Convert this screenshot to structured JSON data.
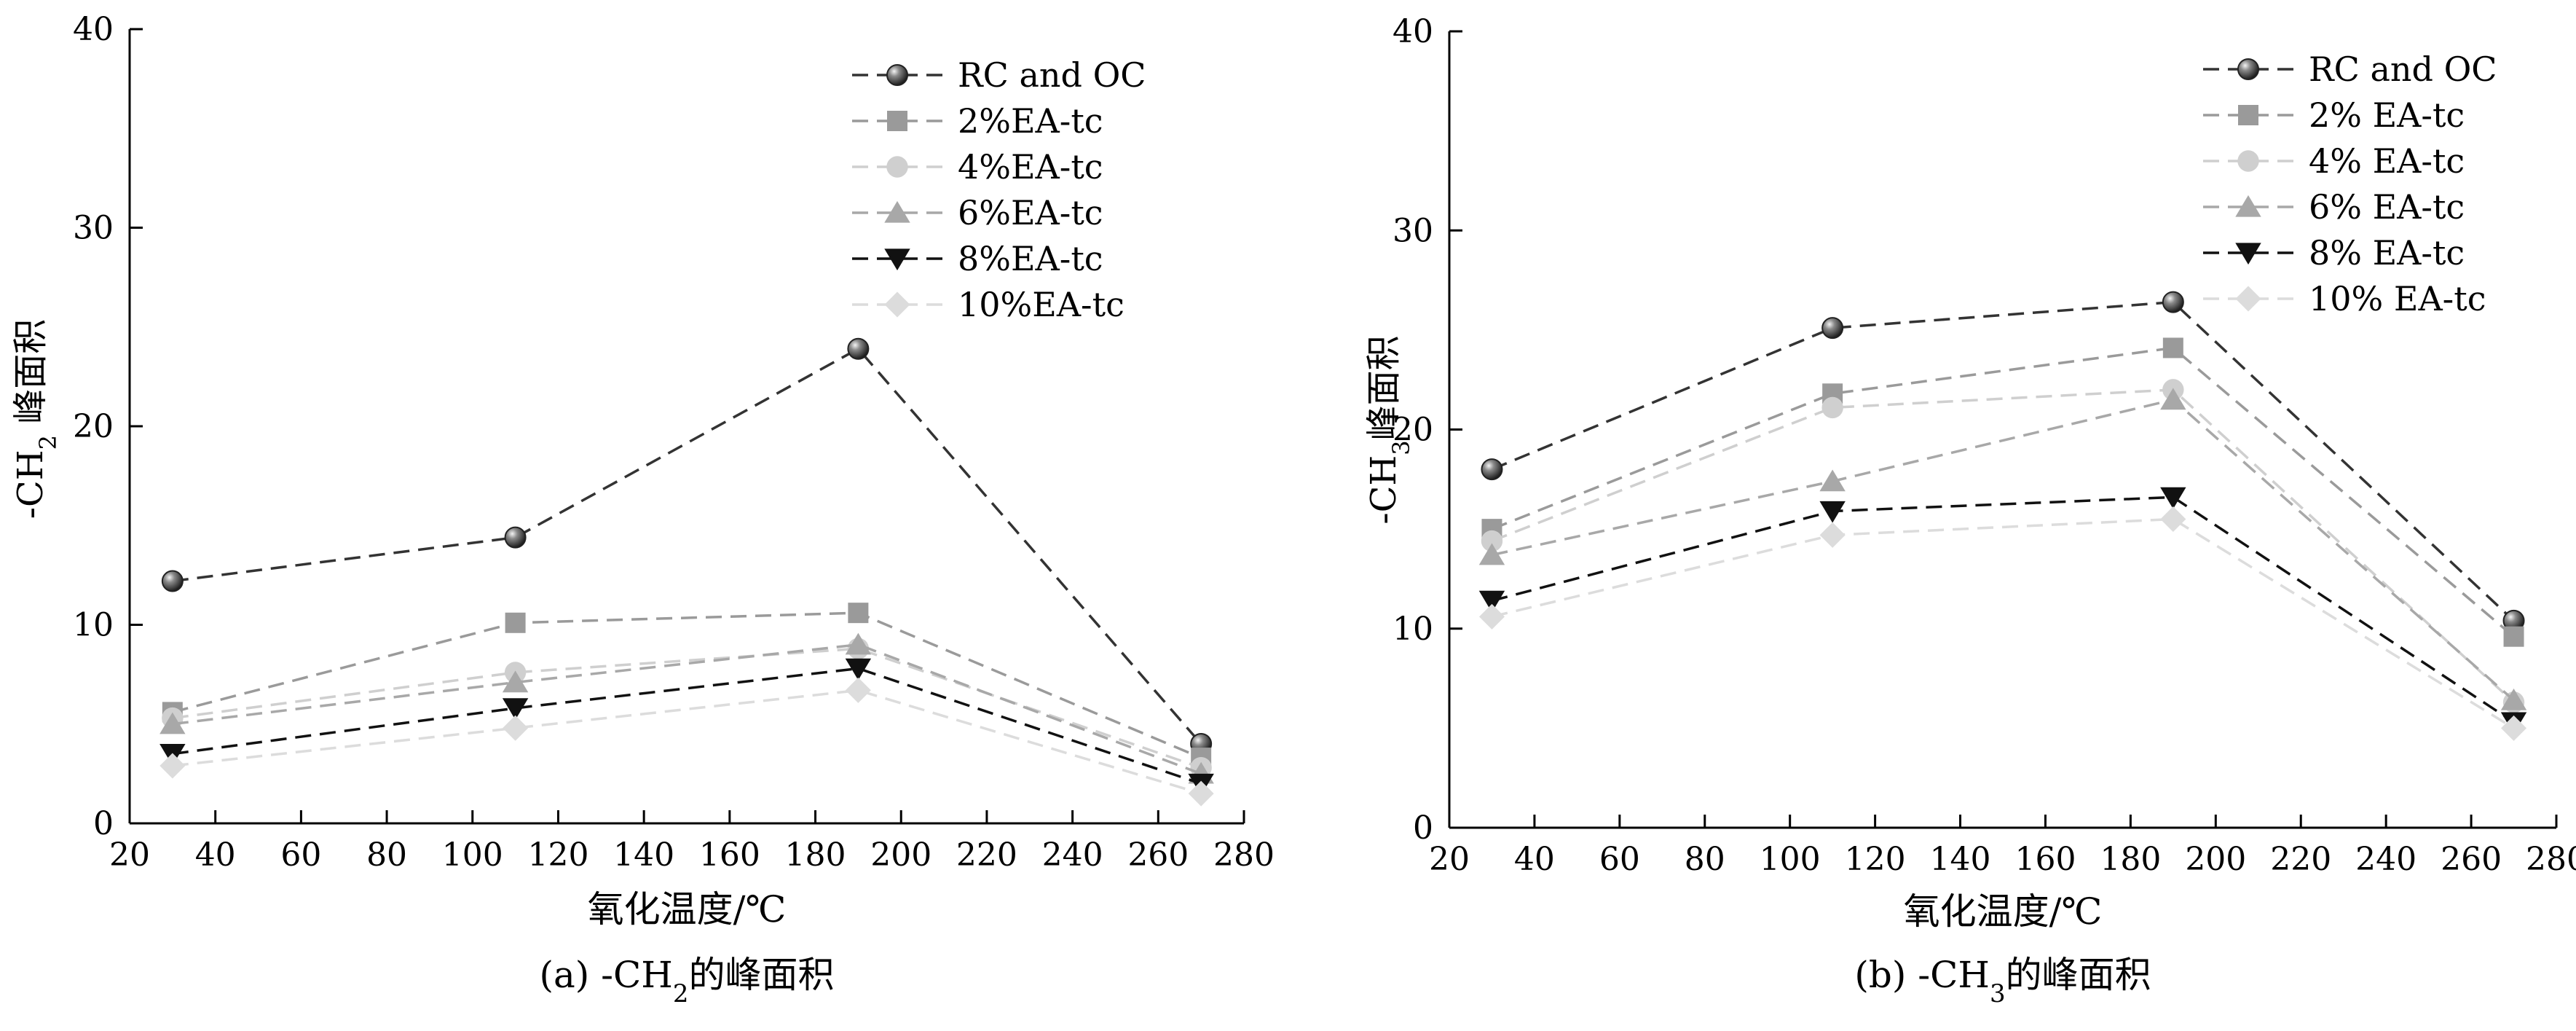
{
  "chart_data": [
    {
      "type": "line",
      "panel": "a",
      "x": [
        30,
        110,
        190,
        270
      ],
      "xlabel": "氧化温度/℃",
      "ylabel_prefix": "-CH",
      "ylabel_sub": "2",
      "ylabel_suffix": " 峰面积",
      "caption_prefix": "(a) -CH",
      "caption_sub": "2",
      "caption_suffix": "的峰面积",
      "xlim": [
        20,
        280
      ],
      "ylim": [
        0,
        40
      ],
      "xticks": [
        20,
        40,
        60,
        80,
        100,
        120,
        140,
        160,
        180,
        200,
        220,
        240,
        260,
        280
      ],
      "yticks": [
        0,
        10,
        20,
        30,
        40
      ],
      "legend_position": "top-right",
      "grid": false,
      "series": [
        {
          "name": "RC and OC",
          "values": [
            12.2,
            14.4,
            23.9,
            4.0
          ],
          "color": "#333333",
          "marker": "sphere"
        },
        {
          "name": "2%EA-tc",
          "values": [
            5.6,
            10.1,
            10.6,
            3.3
          ],
          "color": "#9a9a9a",
          "marker": "square"
        },
        {
          "name": "4%EA-tc",
          "values": [
            5.3,
            7.6,
            8.8,
            2.8
          ],
          "color": "#cfcfcf",
          "marker": "circle"
        },
        {
          "name": "6%EA-tc",
          "values": [
            5.0,
            7.1,
            9.0,
            2.5
          ],
          "color": "#a8a8a8",
          "marker": "triangle"
        },
        {
          "name": "8%EA-tc",
          "values": [
            3.5,
            5.8,
            7.8,
            2.0
          ],
          "color": "#111111",
          "marker": "triangle-down"
        },
        {
          "name": "10%EA-tc",
          "values": [
            2.9,
            4.8,
            6.7,
            1.5
          ],
          "color": "#dcdcdc",
          "marker": "diamond"
        }
      ]
    },
    {
      "type": "line",
      "panel": "b",
      "x": [
        30,
        110,
        190,
        270
      ],
      "xlabel": "氧化温度/℃",
      "ylabel_prefix": "-CH",
      "ylabel_sub": "3",
      "ylabel_suffix": "峰面积",
      "caption_prefix": "(b) -CH",
      "caption_sub": "3",
      "caption_suffix": "的峰面积",
      "xlim": [
        20,
        280
      ],
      "ylim": [
        0,
        40
      ],
      "xticks": [
        20,
        40,
        60,
        80,
        100,
        120,
        140,
        160,
        180,
        200,
        220,
        240,
        260,
        280
      ],
      "yticks": [
        0,
        10,
        20,
        30,
        40
      ],
      "legend_position": "top-right",
      "grid": false,
      "series": [
        {
          "name": "RC and OC",
          "values": [
            18.0,
            25.1,
            26.4,
            10.4
          ],
          "color": "#333333",
          "marker": "sphere"
        },
        {
          "name": "2% EA-tc",
          "values": [
            15.0,
            21.8,
            24.1,
            9.6
          ],
          "color": "#9a9a9a",
          "marker": "square"
        },
        {
          "name": "4% EA-tc",
          "values": [
            14.4,
            21.1,
            22.0,
            6.3
          ],
          "color": "#cfcfcf",
          "marker": "circle"
        },
        {
          "name": "6% EA-tc",
          "values": [
            13.7,
            17.4,
            21.5,
            6.4
          ],
          "color": "#a8a8a8",
          "marker": "triangle"
        },
        {
          "name": "8% EA-tc",
          "values": [
            11.4,
            15.9,
            16.6,
            5.3
          ],
          "color": "#111111",
          "marker": "triangle-down"
        },
        {
          "name": "10% EA-tc",
          "values": [
            10.6,
            14.7,
            15.5,
            5.0
          ],
          "color": "#dcdcdc",
          "marker": "diamond"
        }
      ]
    }
  ]
}
